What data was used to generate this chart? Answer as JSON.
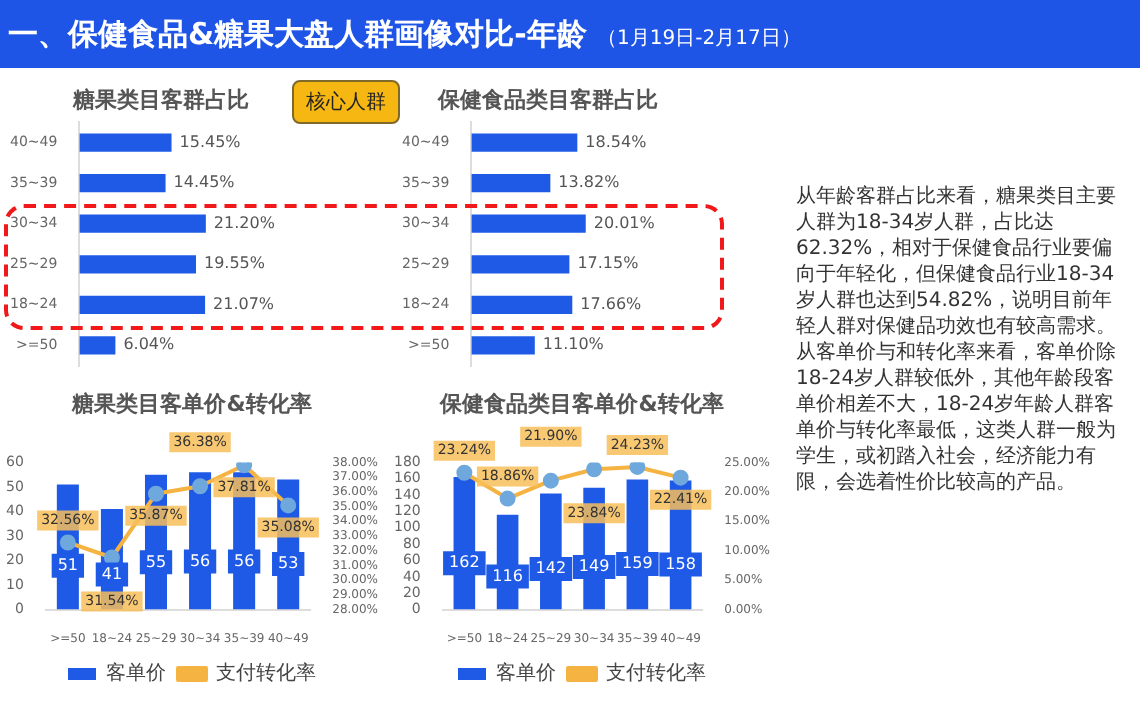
{
  "chart_data": [
    {
      "type": "other",
      "title": "一、保健食品&糖果大盘人群画像对比-年龄",
      "subtitle": "（1月19日-2月17日）",
      "annotations": [
        "核心人群",
        "从年龄客群占比来看，糖果类目主要人群为18-34岁人群，占比达62.32%，相对于保健食品行业要偏向于年轻化，但保健食品行业18-34岁人群也达到54.82%，说明目前年轻人群对保健品功效也有较高需求。从客单价与和转化率来看，客单价除18-24岁人群较低外，其他年龄段客单价相差不大，18-24岁年龄人群客单价与转化率最低，这类人群一般为学生，或初踏入社会，经济能力有限，会选着性价比较高的产品。"
      ]
    },
    {
      "type": "bar",
      "orientation": "horizontal",
      "title": "糖果类目客群占比",
      "categories": [
        "40~49",
        "35~39",
        "30~34",
        "25~29",
        "18~24",
        ">=50"
      ],
      "values": [
        15.45,
        14.45,
        21.2,
        19.55,
        21.07,
        6.04
      ],
      "value_labels": [
        "15.45%",
        "14.45%",
        "21.20%",
        "19.55%",
        "21.07%",
        "6.04%"
      ],
      "color": "#1f5ae6",
      "tick_labels": "y"
    },
    {
      "type": "bar",
      "orientation": "horizontal",
      "title": "保健食品类目客群占比",
      "categories": [
        "40~49",
        "35~39",
        "30~34",
        "25~29",
        "18~24",
        ">=50"
      ],
      "values": [
        18.54,
        13.82,
        20.01,
        17.15,
        17.66,
        11.1
      ],
      "value_labels": [
        "18.54%",
        "13.82%",
        "20.01%",
        "17.15%",
        "17.66%",
        "11.10%"
      ],
      "color": "#1f5ae6",
      "tick_labels": "y"
    },
    {
      "type": "bar",
      "title": "糖果类目客单价&转化率",
      "categories": [
        ">=50",
        "18~24",
        "25~29",
        "30~34",
        "35~39",
        "40~49"
      ],
      "ylim": [
        0,
        60
      ],
      "yticks": [
        0,
        10,
        20,
        30,
        40,
        50,
        60
      ],
      "y2lim": [
        28,
        38
      ],
      "y2ticks": [
        {
          "value": 28,
          "label": "28.00%"
        },
        {
          "value": 29,
          "label": "29.00%"
        },
        {
          "value": 30,
          "label": "30.00%"
        },
        {
          "value": 31,
          "label": "31.00%"
        },
        {
          "value": 32,
          "label": "32.00%"
        },
        {
          "value": 33,
          "label": "33.00%"
        },
        {
          "value": 34,
          "label": "34.00%"
        },
        {
          "value": 35,
          "label": "35.00%"
        },
        {
          "value": 36,
          "label": "36.00%"
        },
        {
          "value": 37,
          "label": "37.00%"
        },
        {
          "value": 38,
          "label": "38.00%"
        }
      ],
      "legend": "bottom",
      "marker": "circle",
      "series": [
        {
          "name": "客单价",
          "type": "bar",
          "color": "#1f5ae6",
          "values": [
            51,
            41,
            55,
            56,
            56,
            53
          ],
          "value_labels": [
            "51",
            "41",
            "55",
            "56",
            "56",
            "53"
          ]
        },
        {
          "name": "支付转化率",
          "type": "line",
          "axis": "y2",
          "color": "#f5b342",
          "values": [
            32.56,
            31.54,
            35.87,
            36.38,
            37.81,
            35.08
          ],
          "value_labels": [
            "32.56%",
            "31.54%",
            "35.87%",
            "36.38%",
            "37.81%",
            "35.08%"
          ]
        }
      ]
    },
    {
      "type": "bar",
      "title": "保健食品类目客单价&转化率",
      "categories": [
        ">=50",
        "18~24",
        "25~29",
        "30~34",
        "35~39",
        "40~49"
      ],
      "ylim": [
        0,
        180
      ],
      "yticks": [
        0,
        20,
        40,
        60,
        80,
        100,
        120,
        140,
        160,
        180
      ],
      "y2lim": [
        0,
        25
      ],
      "y2ticks": [
        {
          "value": 0,
          "label": "0.00%"
        },
        {
          "value": 5,
          "label": "5.00%"
        },
        {
          "value": 10,
          "label": "10.00%"
        },
        {
          "value": 15,
          "label": "15.00%"
        },
        {
          "value": 20,
          "label": "20.00%"
        },
        {
          "value": 25,
          "label": "25.00%"
        }
      ],
      "legend": "bottom",
      "marker": "circle",
      "series": [
        {
          "name": "客单价",
          "type": "bar",
          "color": "#1f5ae6",
          "values": [
            162,
            116,
            142,
            149,
            159,
            158
          ],
          "value_labels": [
            "162",
            "116",
            "142",
            "149",
            "159",
            "158"
          ]
        },
        {
          "name": "支付转化率",
          "type": "line",
          "axis": "y2",
          "color": "#f5b342",
          "values": [
            23.24,
            18.86,
            21.9,
            23.84,
            24.23,
            22.41
          ],
          "value_labels": [
            "23.24%",
            "18.86%",
            "21.90%",
            "23.84%",
            "24.23%",
            "22.41%"
          ]
        }
      ]
    }
  ]
}
